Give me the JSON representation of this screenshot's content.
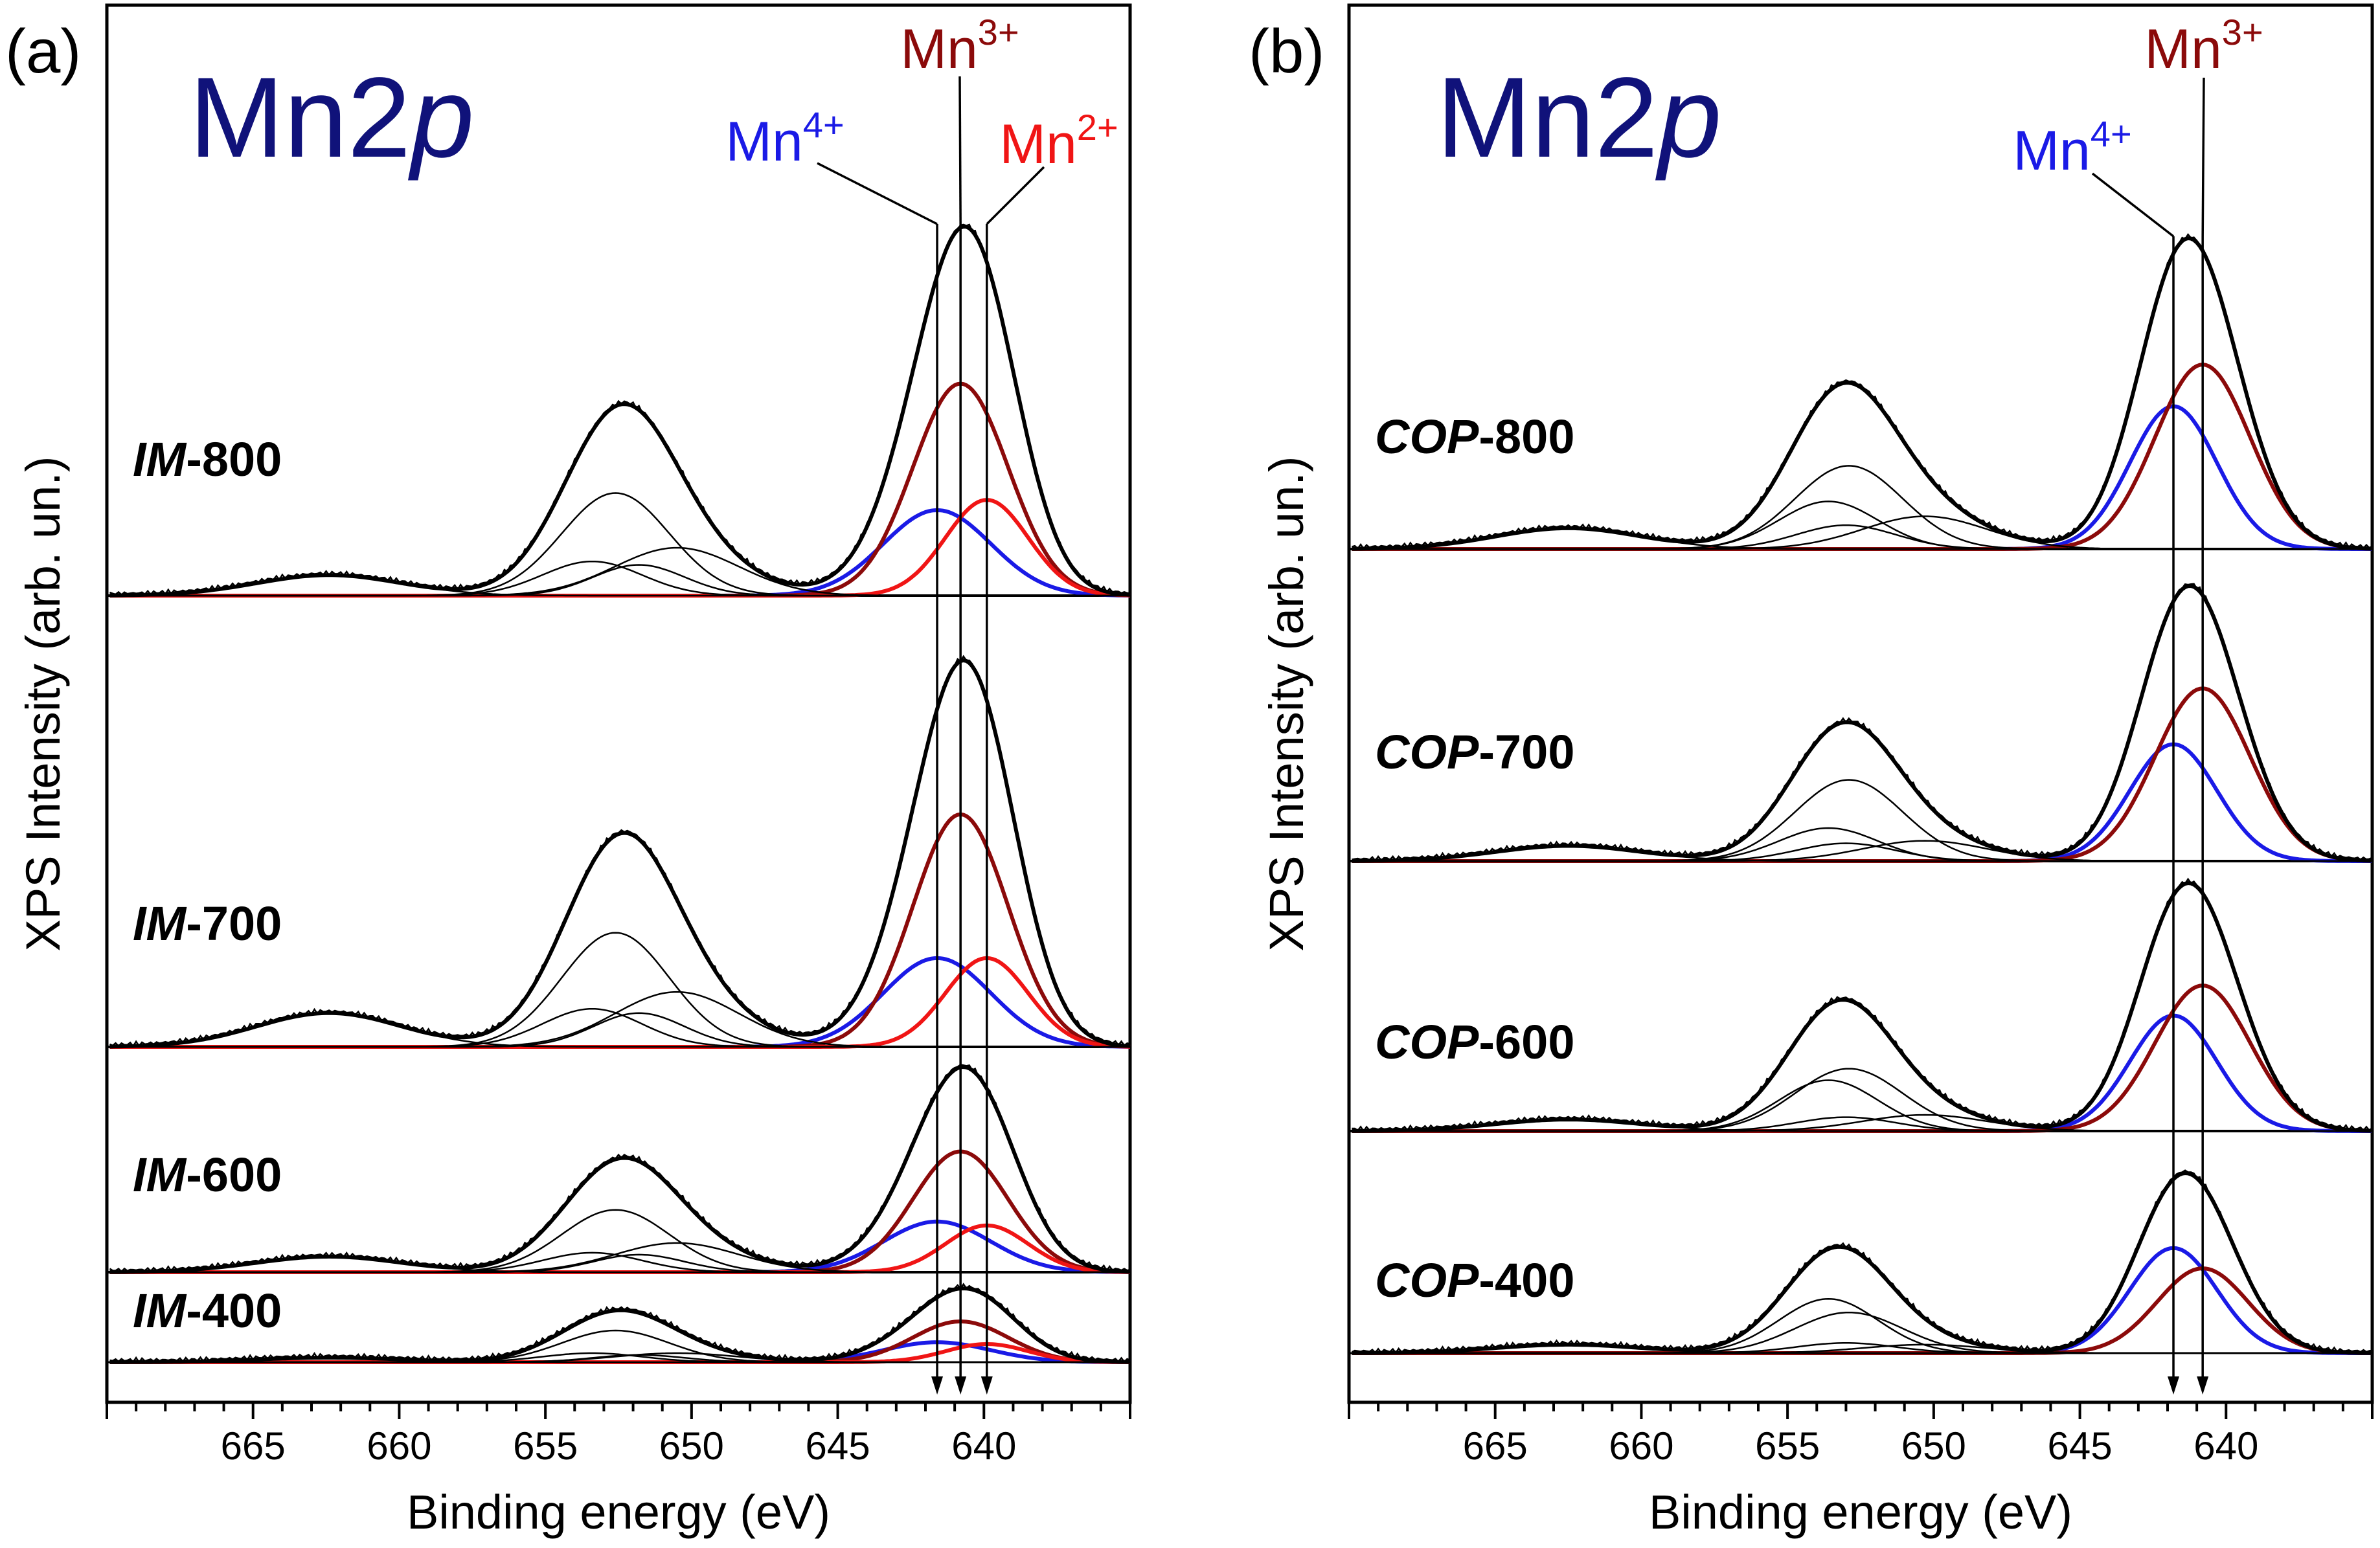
{
  "figure": {
    "x_axis_title": "Binding energy (eV)",
    "y_axis_title": "XPS Intensity (arb. un.)",
    "colors": {
      "mn4": "#1a1ae6",
      "mn3": "#8b0a0a",
      "mn2": "#f01515",
      "title": "#10127a",
      "envelope": "#000000"
    }
  },
  "chart_data": [
    {
      "type": "line",
      "panel": "(a)",
      "title": "Mn2p",
      "title_main": "Mn2",
      "title_italic": "p",
      "xlabel": "Binding energy (eV)",
      "ylabel": "XPS Intensity (arb. un.)",
      "xlim": [
        670,
        635
      ],
      "x_reversed": true,
      "xticks": [
        665,
        660,
        655,
        650,
        645,
        640
      ],
      "xtick_labels": [
        "665",
        "660",
        "655",
        "650",
        "645",
        "640"
      ],
      "markers": [
        {
          "name": "Mn4+",
          "energy": 641.6,
          "label_main": "Mn",
          "label_sup": "4+",
          "color": "#1a1ae6"
        },
        {
          "name": "Mn3+",
          "energy": 640.8,
          "label_main": "Mn",
          "label_sup": "3+",
          "color": "#8b0a0a"
        },
        {
          "name": "Mn2+",
          "energy": 639.9,
          "label_main": "Mn",
          "label_sup": "2+",
          "color": "#f01515"
        }
      ],
      "samples": [
        {
          "label_italic": "IM",
          "label_rest": "-800",
          "envelope_max": 1.0,
          "components": [
            {
              "name": "Mn4+",
              "center": 641.6,
              "height": 0.25,
              "width": 2.6,
              "color": "#1a1ae6"
            },
            {
              "name": "Mn3+",
              "center": 640.8,
              "height": 0.62,
              "width": 2.3,
              "color": "#8b0a0a"
            },
            {
              "name": "Mn2+",
              "center": 639.9,
              "height": 0.28,
              "width": 2.0,
              "color": "#f01515"
            },
            {
              "name": "sat-1",
              "center": 652.6,
              "height": 0.3,
              "width": 2.6,
              "color": "#000000"
            },
            {
              "name": "sat-2",
              "center": 653.4,
              "height": 0.1,
              "width": 2.4,
              "color": "#000000"
            },
            {
              "name": "sat-3",
              "center": 651.8,
              "height": 0.09,
              "width": 2.2,
              "color": "#000000"
            },
            {
              "name": "sat-4",
              "center": 650.5,
              "height": 0.14,
              "width": 3.0,
              "color": "#000000"
            },
            {
              "name": "sat-5",
              "center": 662.4,
              "height": 0.06,
              "width": 3.5,
              "color": "#000000"
            }
          ]
        },
        {
          "label_italic": "IM",
          "label_rest": "-700",
          "envelope_max": 1.0,
          "components": [
            {
              "name": "Mn4+",
              "center": 641.6,
              "height": 0.21,
              "width": 2.6,
              "color": "#1a1ae6"
            },
            {
              "name": "Mn3+",
              "center": 640.8,
              "height": 0.55,
              "width": 2.3,
              "color": "#8b0a0a"
            },
            {
              "name": "Mn2+",
              "center": 639.9,
              "height": 0.21,
              "width": 2.0,
              "color": "#f01515"
            },
            {
              "name": "sat-1",
              "center": 652.6,
              "height": 0.27,
              "width": 2.6,
              "color": "#000000"
            },
            {
              "name": "sat-2",
              "center": 653.4,
              "height": 0.09,
              "width": 2.4,
              "color": "#000000"
            },
            {
              "name": "sat-3",
              "center": 651.8,
              "height": 0.08,
              "width": 2.2,
              "color": "#000000"
            },
            {
              "name": "sat-4",
              "center": 650.5,
              "height": 0.13,
              "width": 3.0,
              "color": "#000000"
            },
            {
              "name": "sat-5",
              "center": 662.4,
              "height": 0.08,
              "width": 3.5,
              "color": "#000000"
            }
          ]
        },
        {
          "label_italic": "IM",
          "label_rest": "-600",
          "envelope_max": 1.0,
          "components": [
            {
              "name": "Mn4+",
              "center": 641.6,
              "height": 0.26,
              "width": 2.6,
              "color": "#1a1ae6"
            },
            {
              "name": "Mn3+",
              "center": 640.8,
              "height": 0.62,
              "width": 2.3,
              "color": "#8b0a0a"
            },
            {
              "name": "Mn2+",
              "center": 639.9,
              "height": 0.24,
              "width": 2.0,
              "color": "#f01515"
            },
            {
              "name": "sat-1",
              "center": 652.6,
              "height": 0.32,
              "width": 2.6,
              "color": "#000000"
            },
            {
              "name": "sat-2",
              "center": 653.4,
              "height": 0.1,
              "width": 2.4,
              "color": "#000000"
            },
            {
              "name": "sat-3",
              "center": 651.8,
              "height": 0.09,
              "width": 2.2,
              "color": "#000000"
            },
            {
              "name": "sat-4",
              "center": 650.5,
              "height": 0.15,
              "width": 3.0,
              "color": "#000000"
            },
            {
              "name": "sat-5",
              "center": 662.4,
              "height": 0.08,
              "width": 3.5,
              "color": "#000000"
            }
          ]
        },
        {
          "label_italic": "IM",
          "label_rest": "-400",
          "envelope_max": 1.0,
          "components": [
            {
              "name": "Mn4+",
              "center": 641.6,
              "height": 0.22,
              "width": 2.6,
              "color": "#1a1ae6"
            },
            {
              "name": "Mn3+",
              "center": 640.8,
              "height": 0.45,
              "width": 2.3,
              "color": "#8b0a0a"
            },
            {
              "name": "Mn2+",
              "center": 639.9,
              "height": 0.2,
              "width": 2.0,
              "color": "#f01515"
            },
            {
              "name": "sat-1",
              "center": 652.6,
              "height": 0.35,
              "width": 2.6,
              "color": "#000000"
            },
            {
              "name": "sat-2",
              "center": 653.4,
              "height": 0.1,
              "width": 2.4,
              "color": "#000000"
            },
            {
              "name": "sat-3",
              "center": 651.8,
              "height": 0.08,
              "width": 2.2,
              "color": "#000000"
            },
            {
              "name": "sat-4",
              "center": 650.5,
              "height": 0.1,
              "width": 3.0,
              "color": "#000000"
            },
            {
              "name": "sat-5",
              "center": 662.4,
              "height": 0.05,
              "width": 3.5,
              "color": "#000000"
            }
          ]
        }
      ]
    },
    {
      "type": "line",
      "panel": "(b)",
      "title": "Mn2p",
      "title_main": "Mn2",
      "title_italic": "p",
      "xlabel": "Binding energy (eV)",
      "ylabel": "XPS Intensity (arb. un.)",
      "xlim": [
        670,
        635
      ],
      "x_reversed": true,
      "xticks": [
        665,
        660,
        655,
        650,
        645,
        640
      ],
      "xtick_labels": [
        "665",
        "660",
        "655",
        "650",
        "645",
        "640"
      ],
      "markers": [
        {
          "name": "Mn4+",
          "energy": 641.8,
          "label_main": "Mn",
          "label_sup": "4+",
          "color": "#1a1ae6"
        },
        {
          "name": "Mn3+",
          "energy": 640.8,
          "label_main": "Mn",
          "label_sup": "3+",
          "color": "#8b0a0a"
        }
      ],
      "samples": [
        {
          "label_italic": "COP",
          "label_rest": "-800",
          "envelope_max": 1.0,
          "components": [
            {
              "name": "Mn4+",
              "center": 641.8,
              "height": 0.48,
              "width": 2.1,
              "color": "#1a1ae6"
            },
            {
              "name": "Mn3+",
              "center": 640.8,
              "height": 0.62,
              "width": 2.3,
              "color": "#8b0a0a"
            },
            {
              "name": "sat-1",
              "center": 652.9,
              "height": 0.28,
              "width": 2.6,
              "color": "#000000"
            },
            {
              "name": "sat-2",
              "center": 653.6,
              "height": 0.16,
              "width": 2.4,
              "color": "#000000"
            },
            {
              "name": "sat-3",
              "center": 653.0,
              "height": 0.08,
              "width": 2.4,
              "color": "#000000"
            },
            {
              "name": "sat-4",
              "center": 650.3,
              "height": 0.11,
              "width": 3.0,
              "color": "#000000"
            },
            {
              "name": "sat-5",
              "center": 662.5,
              "height": 0.07,
              "width": 3.5,
              "color": "#000000"
            }
          ]
        },
        {
          "label_italic": "COP",
          "label_rest": "-700",
          "envelope_max": 1.0,
          "components": [
            {
              "name": "Mn4+",
              "center": 641.8,
              "height": 0.46,
              "width": 2.1,
              "color": "#1a1ae6"
            },
            {
              "name": "Mn3+",
              "center": 640.8,
              "height": 0.68,
              "width": 2.3,
              "color": "#8b0a0a"
            },
            {
              "name": "sat-1",
              "center": 652.9,
              "height": 0.32,
              "width": 2.6,
              "color": "#000000"
            },
            {
              "name": "sat-2",
              "center": 653.6,
              "height": 0.13,
              "width": 2.4,
              "color": "#000000"
            },
            {
              "name": "sat-3",
              "center": 653.0,
              "height": 0.07,
              "width": 2.4,
              "color": "#000000"
            },
            {
              "name": "sat-4",
              "center": 650.3,
              "height": 0.08,
              "width": 3.0,
              "color": "#000000"
            },
            {
              "name": "sat-5",
              "center": 662.5,
              "height": 0.06,
              "width": 3.5,
              "color": "#000000"
            }
          ]
        },
        {
          "label_italic": "COP",
          "label_rest": "-600",
          "envelope_max": 1.0,
          "components": [
            {
              "name": "Mn4+",
              "center": 641.8,
              "height": 0.5,
              "width": 2.1,
              "color": "#1a1ae6"
            },
            {
              "name": "Mn3+",
              "center": 640.8,
              "height": 0.63,
              "width": 2.3,
              "color": "#8b0a0a"
            },
            {
              "name": "sat-1",
              "center": 652.9,
              "height": 0.27,
              "width": 2.6,
              "color": "#000000"
            },
            {
              "name": "sat-2",
              "center": 653.6,
              "height": 0.22,
              "width": 2.4,
              "color": "#000000"
            },
            {
              "name": "sat-3",
              "center": 653.0,
              "height": 0.06,
              "width": 2.4,
              "color": "#000000"
            },
            {
              "name": "sat-4",
              "center": 650.3,
              "height": 0.07,
              "width": 3.0,
              "color": "#000000"
            },
            {
              "name": "sat-5",
              "center": 662.5,
              "height": 0.05,
              "width": 3.5,
              "color": "#000000"
            }
          ]
        },
        {
          "label_italic": "COP",
          "label_rest": "-400",
          "envelope_max": 1.0,
          "components": [
            {
              "name": "Mn4+",
              "center": 641.8,
              "height": 0.62,
              "width": 2.1,
              "color": "#1a1ae6"
            },
            {
              "name": "Mn3+",
              "center": 640.8,
              "height": 0.5,
              "width": 2.2,
              "color": "#8b0a0a"
            },
            {
              "name": "sat-1",
              "center": 652.9,
              "height": 0.24,
              "width": 2.6,
              "color": "#000000"
            },
            {
              "name": "sat-2",
              "center": 653.6,
              "height": 0.32,
              "width": 2.4,
              "color": "#000000"
            },
            {
              "name": "sat-3",
              "center": 653.0,
              "height": 0.06,
              "width": 2.4,
              "color": "#000000"
            },
            {
              "name": "sat-4",
              "center": 650.3,
              "height": 0.05,
              "width": 3.0,
              "color": "#000000"
            },
            {
              "name": "sat-5",
              "center": 662.5,
              "height": 0.05,
              "width": 3.5,
              "color": "#000000"
            }
          ]
        }
      ]
    }
  ]
}
